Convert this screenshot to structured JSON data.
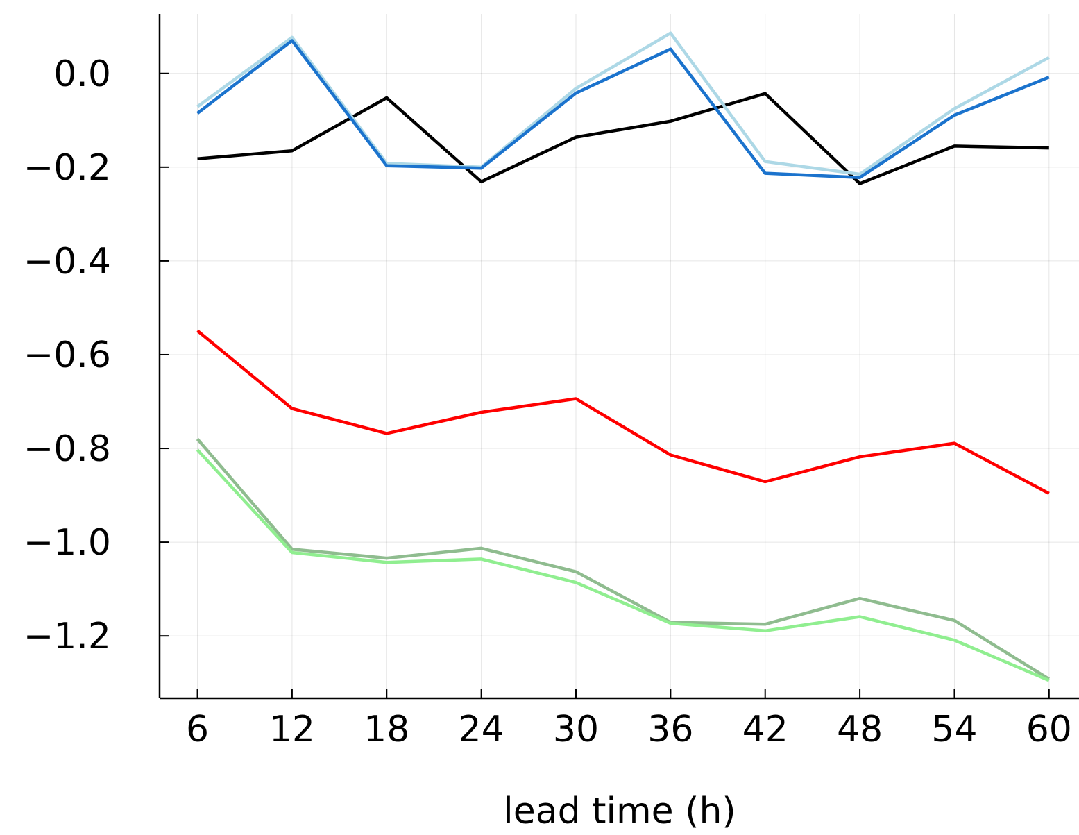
{
  "chart_data": {
    "type": "line",
    "xlabel": "lead time (h)",
    "ylabel": "",
    "xlim": [
      3.6,
      61.9
    ],
    "ylim": [
      -1.333,
      0.127
    ],
    "grid": true,
    "legend": "none",
    "x": [
      6,
      12,
      18,
      24,
      30,
      36,
      42,
      48,
      54,
      60
    ],
    "x_ticks": [
      "6",
      "12",
      "18",
      "24",
      "30",
      "36",
      "42",
      "48",
      "54",
      "60"
    ],
    "y_ticks": [
      {
        "value": 0.0,
        "label": "0.0"
      },
      {
        "value": -0.2,
        "label": "−0.2"
      },
      {
        "value": -0.4,
        "label": "−0.4"
      },
      {
        "value": -0.6,
        "label": "−0.6"
      },
      {
        "value": -0.8,
        "label": "−0.8"
      },
      {
        "value": -1.0,
        "label": "−1.0"
      },
      {
        "value": -1.2,
        "label": "−1.2"
      }
    ],
    "series": [
      {
        "color": "#000000",
        "values": [
          -0.182,
          -0.165,
          -0.052,
          -0.231,
          -0.136,
          -0.102,
          -0.043,
          -0.235,
          -0.155,
          -0.159
        ]
      },
      {
        "color": "#add8e6",
        "values": [
          -0.071,
          0.077,
          -0.192,
          -0.2,
          -0.032,
          0.086,
          -0.188,
          -0.215,
          -0.075,
          0.034
        ]
      },
      {
        "color": "#1b73cd",
        "values": [
          -0.085,
          0.07,
          -0.197,
          -0.202,
          -0.042,
          0.052,
          -0.213,
          -0.222,
          -0.089,
          -0.008
        ]
      },
      {
        "color": "#ff0000",
        "values": [
          -0.549,
          -0.715,
          -0.768,
          -0.723,
          -0.694,
          -0.814,
          -0.871,
          -0.818,
          -0.789,
          -0.896
        ]
      },
      {
        "color": "#8fbc8f",
        "values": [
          -0.78,
          -1.015,
          -1.034,
          -1.013,
          -1.063,
          -1.171,
          -1.175,
          -1.12,
          -1.167,
          -1.292
        ]
      },
      {
        "color": "#90ee90",
        "values": [
          -0.803,
          -1.022,
          -1.043,
          -1.036,
          -1.086,
          -1.173,
          -1.189,
          -1.159,
          -1.209,
          -1.295
        ]
      }
    ]
  }
}
